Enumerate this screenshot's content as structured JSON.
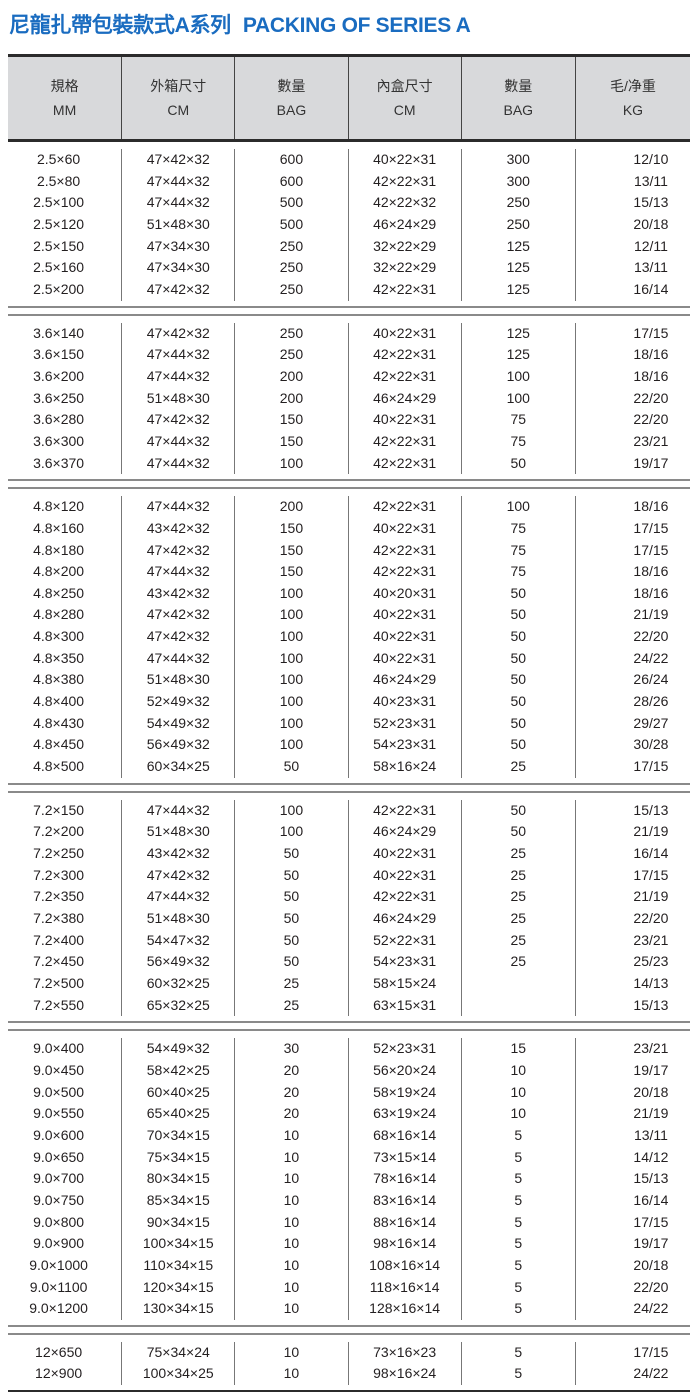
{
  "title": {
    "zh": "尼龍扎帶包裝款式A系列",
    "en": "PACKING OF SERIES A",
    "color": "#1a6cc0"
  },
  "header": [
    {
      "zh": "規格",
      "en": "MM"
    },
    {
      "zh": "外箱尺寸",
      "en": "CM"
    },
    {
      "zh": "數量",
      "en": "BAG"
    },
    {
      "zh": "內盒尺寸",
      "en": "CM"
    },
    {
      "zh": "數量",
      "en": "BAG"
    },
    {
      "zh": "毛/净重",
      "en": "KG"
    }
  ],
  "groups": [
    {
      "rows": [
        [
          "2.5×60",
          "47×42×32",
          "600",
          "40×22×31",
          "300",
          "12/10"
        ],
        [
          "2.5×80",
          "47×44×32",
          "600",
          "42×22×31",
          "300",
          "13/11"
        ],
        [
          "2.5×100",
          "47×44×32",
          "500",
          "42×22×32",
          "250",
          "15/13"
        ],
        [
          "2.5×120",
          "51×48×30",
          "500",
          "46×24×29",
          "250",
          "20/18"
        ],
        [
          "2.5×150",
          "47×34×30",
          "250",
          "32×22×29",
          "125",
          "12/11"
        ],
        [
          "2.5×160",
          "47×34×30",
          "250",
          "32×22×29",
          "125",
          "13/11"
        ],
        [
          "2.5×200",
          "47×42×32",
          "250",
          "42×22×31",
          "125",
          "16/14"
        ]
      ]
    },
    {
      "rows": [
        [
          "3.6×140",
          "47×42×32",
          "250",
          "40×22×31",
          "125",
          "17/15"
        ],
        [
          "3.6×150",
          "47×44×32",
          "250",
          "42×22×31",
          "125",
          "18/16"
        ],
        [
          "3.6×200",
          "47×44×32",
          "200",
          "42×22×31",
          "100",
          "18/16"
        ],
        [
          "3.6×250",
          "51×48×30",
          "200",
          "46×24×29",
          "100",
          "22/20"
        ],
        [
          "3.6×280",
          "47×42×32",
          "150",
          "40×22×31",
          "75",
          "22/20"
        ],
        [
          "3.6×300",
          "47×44×32",
          "150",
          "42×22×31",
          "75",
          "23/21"
        ],
        [
          "3.6×370",
          "47×44×32",
          "100",
          "42×22×31",
          "50",
          "19/17"
        ]
      ]
    },
    {
      "rows": [
        [
          "4.8×120",
          "47×44×32",
          "200",
          "42×22×31",
          "100",
          "18/16"
        ],
        [
          "4.8×160",
          "43×42×32",
          "150",
          "40×22×31",
          "75",
          "17/15"
        ],
        [
          "4.8×180",
          "47×42×32",
          "150",
          "42×22×31",
          "75",
          "17/15"
        ],
        [
          "4.8×200",
          "47×44×32",
          "150",
          "42×22×31",
          "75",
          "18/16"
        ],
        [
          "4.8×250",
          "43×42×32",
          "100",
          "40×20×31",
          "50",
          "18/16"
        ],
        [
          "4.8×280",
          "47×42×32",
          "100",
          "40×22×31",
          "50",
          "21/19"
        ],
        [
          "4.8×300",
          "47×42×32",
          "100",
          "40×22×31",
          "50",
          "22/20"
        ],
        [
          "4.8×350",
          "47×44×32",
          "100",
          "40×22×31",
          "50",
          "24/22"
        ],
        [
          "4.8×380",
          "51×48×30",
          "100",
          "46×24×29",
          "50",
          "26/24"
        ],
        [
          "4.8×400",
          "52×49×32",
          "100",
          "40×23×31",
          "50",
          "28/26"
        ],
        [
          "4.8×430",
          "54×49×32",
          "100",
          "52×23×31",
          "50",
          "29/27"
        ],
        [
          "4.8×450",
          "56×49×32",
          "100",
          "54×23×31",
          "50",
          "30/28"
        ],
        [
          "4.8×500",
          "60×34×25",
          "50",
          "58×16×24",
          "25",
          "17/15"
        ]
      ]
    },
    {
      "rows": [
        [
          "7.2×150",
          "47×44×32",
          "100",
          "42×22×31",
          "50",
          "15/13"
        ],
        [
          "7.2×200",
          "51×48×30",
          "100",
          "46×24×29",
          "50",
          "21/19"
        ],
        [
          "7.2×250",
          "43×42×32",
          "50",
          "40×22×31",
          "25",
          "16/14"
        ],
        [
          "7.2×300",
          "47×42×32",
          "50",
          "40×22×31",
          "25",
          "17/15"
        ],
        [
          "7.2×350",
          "47×44×32",
          "50",
          "42×22×31",
          "25",
          "21/19"
        ],
        [
          "7.2×380",
          "51×48×30",
          "50",
          "46×24×29",
          "25",
          "22/20"
        ],
        [
          "7.2×400",
          "54×47×32",
          "50",
          "52×22×31",
          "25",
          "23/21"
        ],
        [
          "7.2×450",
          "56×49×32",
          "50",
          "54×23×31",
          "25",
          "25/23"
        ],
        [
          "7.2×500",
          "60×32×25",
          "25",
          "58×15×24",
          "",
          "14/13"
        ],
        [
          "7.2×550",
          "65×32×25",
          "25",
          "63×15×31",
          "",
          "15/13"
        ]
      ]
    },
    {
      "rows": [
        [
          "9.0×400",
          "54×49×32",
          "30",
          "52×23×31",
          "15",
          "23/21"
        ],
        [
          "9.0×450",
          "58×42×25",
          "20",
          "56×20×24",
          "10",
          "19/17"
        ],
        [
          "9.0×500",
          "60×40×25",
          "20",
          "58×19×24",
          "10",
          "20/18"
        ],
        [
          "9.0×550",
          "65×40×25",
          "20",
          "63×19×24",
          "10",
          "21/19"
        ],
        [
          "9.0×600",
          "70×34×15",
          "10",
          "68×16×14",
          "5",
          "13/11"
        ],
        [
          "9.0×650",
          "75×34×15",
          "10",
          "73×15×14",
          "5",
          "14/12"
        ],
        [
          "9.0×700",
          "80×34×15",
          "10",
          "78×16×14",
          "5",
          "15/13"
        ],
        [
          "9.0×750",
          "85×34×15",
          "10",
          "83×16×14",
          "5",
          "16/14"
        ],
        [
          "9.0×800",
          "90×34×15",
          "10",
          "88×16×14",
          "5",
          "17/15"
        ],
        [
          "9.0×900",
          "100×34×15",
          "10",
          "98×16×14",
          "5",
          "19/17"
        ],
        [
          "9.0×1000",
          "110×34×15",
          "10",
          "108×16×14",
          "5",
          "20/18"
        ],
        [
          "9.0×1100",
          "120×34×15",
          "10",
          "118×16×14",
          "5",
          "22/20"
        ],
        [
          "9.0×1200",
          "130×34×15",
          "10",
          "128×16×14",
          "5",
          "24/22"
        ]
      ]
    },
    {
      "rows": [
        [
          "12×650",
          "75×34×24",
          "10",
          "73×16×23",
          "5",
          "17/15"
        ],
        [
          "12×900",
          "100×34×25",
          "10",
          "98×16×24",
          "5",
          "24/22"
        ]
      ]
    }
  ]
}
